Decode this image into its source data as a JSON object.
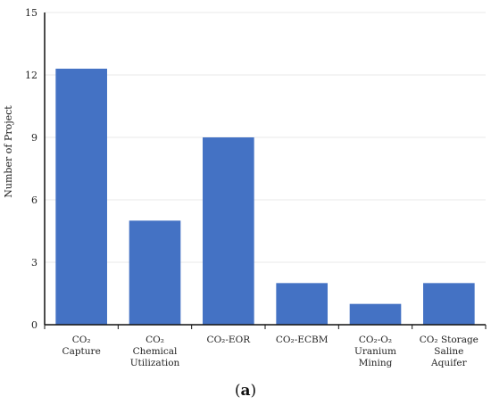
{
  "chart_data": {
    "type": "bar",
    "categories": [
      [
        "CO₂",
        "Capture"
      ],
      [
        "CO₂",
        "Chemical",
        "Utilization"
      ],
      [
        "CO₂-EOR"
      ],
      [
        "CO₂-ECBM"
      ],
      [
        "CO₂-O₂",
        "Uranium",
        "Mining"
      ],
      [
        "CO₂ Storage",
        "Saline",
        "Aquifer"
      ]
    ],
    "values": [
      12.3,
      5,
      9,
      2,
      1,
      2
    ],
    "ylabel": "Number of Project",
    "xlabel": "",
    "ylim": [
      0,
      15
    ],
    "yticks": [
      0,
      3,
      6,
      9,
      12,
      15
    ],
    "bar_color": "#4472c4",
    "grid_color": "#e8e8e8",
    "grid": true
  },
  "caption": {
    "open": "(",
    "letter": "a",
    "close": ")"
  }
}
